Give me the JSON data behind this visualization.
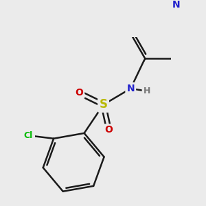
{
  "background_color": "#ebebeb",
  "bond_color": "#1a1a1a",
  "bond_width": 1.8,
  "atoms": {
    "N": {
      "color": "#2020cc",
      "fontsize": 10
    },
    "S": {
      "color": "#b8b800",
      "fontsize": 11
    },
    "O": {
      "color": "#cc0000",
      "fontsize": 10
    },
    "Cl": {
      "color": "#00bb00",
      "fontsize": 9
    },
    "H": {
      "color": "#777777",
      "fontsize": 9
    }
  },
  "figsize": [
    3.0,
    3.0
  ],
  "dpi": 100,
  "xlim": [
    -1.2,
    3.2
  ],
  "ylim": [
    -3.2,
    2.2
  ]
}
